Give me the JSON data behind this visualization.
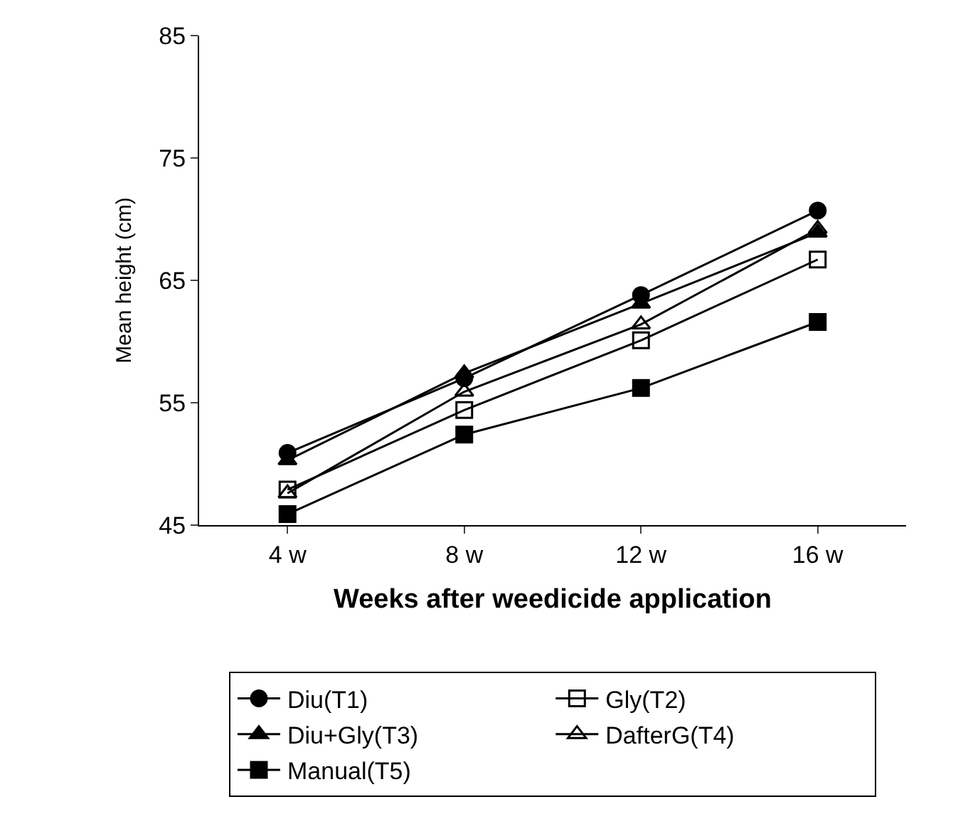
{
  "chart_data": {
    "type": "line",
    "categories": [
      "4 w",
      "8 w",
      "12 w",
      "16 w"
    ],
    "xlabel": "Weeks after weedicide application",
    "ylabel": "Mean height (cm)",
    "ylim": [
      45,
      85
    ],
    "yticks": [
      45,
      55,
      65,
      75,
      85
    ],
    "legend": "bottom",
    "line_style": "solid",
    "series": [
      {
        "name": "Diu(T1)",
        "color": "#000000",
        "marker": "circle",
        "values": [
          50.9,
          57.0,
          63.8,
          70.7
        ]
      },
      {
        "name": "Gly(T2)",
        "color": "#000000",
        "marker": "square-open",
        "values": [
          47.9,
          54.4,
          60.1,
          66.7
        ]
      },
      {
        "name": "Diu+Gly(T3)",
        "color": "#000000",
        "marker": "triangle",
        "values": [
          50.3,
          57.4,
          63.1,
          68.9
        ]
      },
      {
        "name": "DafterG(T4)",
        "color": "#000000",
        "marker": "triangle-open",
        "values": [
          47.6,
          55.9,
          61.4,
          69.2
        ]
      },
      {
        "name": "Manual(T5)",
        "color": "#000000",
        "marker": "square",
        "values": [
          45.9,
          52.4,
          56.2,
          61.6
        ]
      }
    ]
  }
}
